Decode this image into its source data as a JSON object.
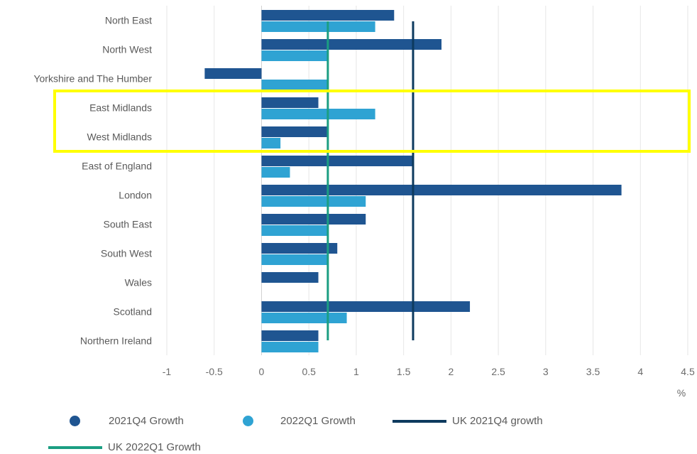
{
  "colors": {
    "growth_2021q4": "#1f5591",
    "growth_2022q1": "#2fa3d3",
    "uk_2021q4": "#0d3a5e",
    "uk_2022q1": "#1b9e82",
    "grid": "#e6e6e6",
    "highlight": "#ffff00"
  },
  "chart_data": {
    "type": "bar",
    "orientation": "horizontal",
    "categories": [
      "North East",
      "North West",
      "Yorkshire and The Humber",
      "East Midlands",
      "West Midlands",
      "East of England",
      "London",
      "South East",
      "South West",
      "Wales",
      "Scotland",
      "Northern Ireland"
    ],
    "series": [
      {
        "name": "2021Q4 Growth",
        "values": [
          1.4,
          1.9,
          -0.6,
          0.6,
          0.7,
          1.6,
          3.8,
          1.1,
          0.8,
          0.6,
          2.2,
          0.6
        ]
      },
      {
        "name": "2022Q1 Growth",
        "values": [
          1.2,
          0.7,
          0.7,
          1.2,
          0.2,
          0.3,
          1.1,
          0.7,
          0.7,
          null,
          0.9,
          0.6
        ]
      }
    ],
    "reference_lines": [
      {
        "name": "UK 2021Q4 growth",
        "value": 1.6
      },
      {
        "name": "UK 2022Q1 Growth",
        "value": 0.7
      }
    ],
    "xlim": [
      -1,
      4.5
    ],
    "xticks": [
      "-1",
      "-0.5",
      "0",
      "0.5",
      "1",
      "1.5",
      "2",
      "2.5",
      "3",
      "3.5",
      "4",
      "4.5"
    ],
    "xtick_values": [
      -1,
      -0.5,
      0,
      0.5,
      1,
      1.5,
      2,
      2.5,
      3,
      3.5,
      4,
      4.5
    ],
    "xlabel": "%",
    "grid": "vertical",
    "legend_position": "bottom",
    "highlighted_categories": [
      "East Midlands",
      "West Midlands"
    ]
  },
  "legend": [
    {
      "label": "2021Q4 Growth",
      "marker": "dot",
      "color_key": "growth_2021q4"
    },
    {
      "label": "2022Q1 Growth",
      "marker": "dot",
      "color_key": "growth_2022q1"
    },
    {
      "label": "UK 2021Q4 growth",
      "marker": "line",
      "color_key": "uk_2021q4"
    },
    {
      "label": "UK 2022Q1 Growth",
      "marker": "line",
      "color_key": "uk_2022q1"
    }
  ]
}
